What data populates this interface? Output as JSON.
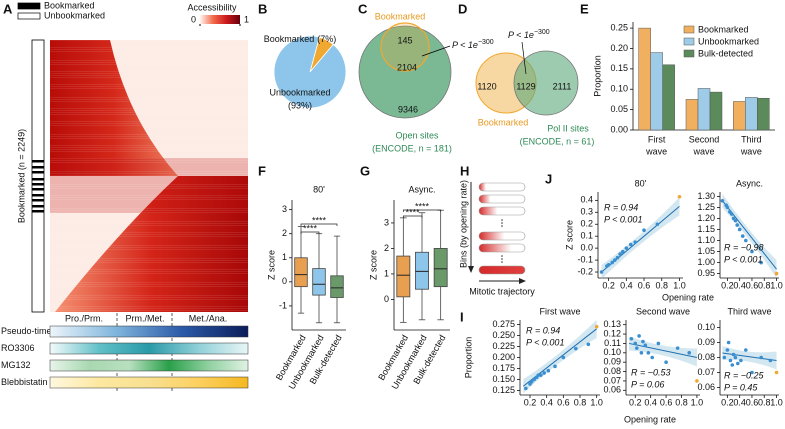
{
  "chart_data": [
    {
      "type": "heatmap",
      "panel": "A",
      "legend": [
        {
          "name": "Bookmarked",
          "color": "#000000"
        },
        {
          "name": "Unbookmarked",
          "color": "#ffffff"
        }
      ],
      "colorbar_title": "Accessibility",
      "colorbar_colors": [
        "#fff5f0",
        "#f26a4a",
        "#cb181d",
        "#67000d"
      ],
      "colorbar_ticks": [
        0,
        1
      ],
      "ylabel": "Bookmarked (n = 2249)",
      "stages": [
        "Pro./Prm.",
        "Prm./Met.",
        "Met./Ana."
      ],
      "tracks": [
        {
          "name": "Pseudo-time",
          "colors": [
            "#eef5fb",
            "#7fb5dc",
            "#2a5aa8",
            "#0b1d5a"
          ]
        },
        {
          "name": "RO3306",
          "colors": [
            "#f4fbfb",
            "#60c0c8",
            "#2a9aa8",
            "#90d0d8",
            "#e8f6f6"
          ]
        },
        {
          "name": "MG132",
          "colors": [
            "#e8f4ea",
            "#a8d8b0",
            "#b8e0c0",
            "#2aa04a",
            "#90d0a0",
            "#e0f2e4"
          ]
        },
        {
          "name": "Blebbistatin",
          "colors": [
            "#fff8e0",
            "#fde8a0",
            "#f8e090",
            "#fcd060",
            "#f5b820"
          ]
        }
      ]
    },
    {
      "type": "pie",
      "panel": "B",
      "categories": [
        "Bookmarked",
        "Unbookmarked"
      ],
      "values": [
        7,
        93
      ],
      "value_labels": [
        "(7%)",
        "(93%)"
      ],
      "colors": [
        "#f0a830",
        "#8ec5ea"
      ]
    },
    {
      "type": "venn",
      "panel": "C",
      "layout": "nested",
      "sets": [
        "Bookmarked",
        "Open sites"
      ],
      "set_note": "(ENCODE, n = 181)",
      "values": [
        145,
        2104,
        9346
      ],
      "annotation": {
        "text": "P < 1e",
        "exponent": "−300"
      },
      "colors": [
        "#f0a830",
        "#5aa87a"
      ]
    },
    {
      "type": "venn",
      "panel": "D",
      "layout": "overlap",
      "sets": [
        "Bookmarked",
        "Pol II sites"
      ],
      "set_note": "(ENCODE, n = 61)",
      "values": [
        1120,
        1129,
        2111
      ],
      "annotation": {
        "text": "P < 1e",
        "exponent": "−300"
      },
      "colors": [
        "#f0a830",
        "#5aa87a"
      ]
    },
    {
      "type": "bar",
      "panel": "E",
      "ylabel": "Proportion",
      "categories": [
        [
          "First",
          "wave"
        ],
        [
          "Second",
          "wave"
        ],
        [
          "Third",
          "wave"
        ]
      ],
      "series": [
        {
          "name": "Bookmarked",
          "color": "#f0b060",
          "values": [
            0.25,
            0.075,
            0.07
          ]
        },
        {
          "name": "Unbookmarked",
          "color": "#9dcbe8",
          "values": [
            0.19,
            0.102,
            0.08
          ]
        },
        {
          "name": "Bulk-detected",
          "color": "#5b8a5b",
          "values": [
            0.16,
            0.093,
            0.078
          ]
        }
      ],
      "ylim": [
        0,
        0.265
      ],
      "yticks": [
        {
          "value": 0,
          "label": "0.00"
        },
        0.05,
        {
          "value": 0.1,
          "label": "0.10"
        },
        0.15,
        {
          "value": 0.2,
          "label": "0.20"
        },
        0.25
      ]
    },
    {
      "type": "box",
      "panel": "F",
      "title": "80'",
      "ylabel": "Z score",
      "categories": [
        "Bookmarked",
        "Unbookmarked",
        "Bulk-detected"
      ],
      "colors": [
        "#e8a050",
        "#8ec5ea",
        "#6a9a6a"
      ],
      "boxes": [
        {
          "low": -1.3,
          "q1": -0.2,
          "median": 0.3,
          "q3": 1.0,
          "high": 2.3
        },
        {
          "low": -1.7,
          "q1": -0.55,
          "median": -0.1,
          "q3": 0.55,
          "high": 2.0
        },
        {
          "low": -1.7,
          "q1": -0.65,
          "median": -0.25,
          "q3": 0.25,
          "high": 1.9
        }
      ],
      "ylim": [
        -2,
        3.4
      ],
      "yticks": [
        -1,
        0,
        1,
        2,
        3
      ],
      "significance": [
        "****",
        "****"
      ]
    },
    {
      "type": "box",
      "panel": "G",
      "title": "Async.",
      "ylabel": "Z score",
      "categories": [
        "Bookmarked",
        "Unbookmarked",
        "Bulk-detected"
      ],
      "colors": [
        "#e8a050",
        "#8ec5ea",
        "#6a9a6a"
      ],
      "boxes": [
        {
          "low": -0.9,
          "q1": 0.1,
          "median": 0.95,
          "q3": 1.7,
          "high": 3.2
        },
        {
          "low": -0.8,
          "q1": 0.4,
          "median": 1.1,
          "q3": 1.85,
          "high": 3.4
        },
        {
          "low": -0.8,
          "q1": 0.5,
          "median": 1.2,
          "q3": 2.0,
          "high": 3.5
        }
      ],
      "ylim": [
        -1.2,
        3.9
      ],
      "yticks": [
        0,
        1,
        2,
        3
      ],
      "significance": [
        "****",
        "****"
      ]
    },
    {
      "type": "schematic",
      "panel": "H",
      "ylabel": "Bins (by opening rate)",
      "xlabel": "Mitotic trajectory"
    },
    {
      "type": "scatter",
      "panel": "J",
      "title": "80'",
      "ylabel": "Z score",
      "color": "#3a8fd0",
      "highlight_color": "#f0a830",
      "x": [
        0.12,
        0.18,
        0.2,
        0.24,
        0.27,
        0.3,
        0.33,
        0.36,
        0.4,
        0.45,
        0.5,
        0.6,
        0.75,
        1.0
      ],
      "y": [
        -0.2,
        -0.15,
        -0.14,
        -0.12,
        -0.1,
        -0.08,
        -0.05,
        -0.03,
        0,
        0.03,
        0.05,
        0.15,
        0.2,
        0.43
      ],
      "fit_x": [
        0.12,
        1.0
      ],
      "fit_y": [
        -0.2,
        0.35
      ],
      "xlim": [
        0.08,
        1.04
      ],
      "ylim": [
        -0.25,
        0.47
      ],
      "xticks": [
        0.2,
        0.4,
        0.6,
        0.8,
        {
          "value": 1,
          "label": "1.0"
        }
      ],
      "yticks": [
        -0.2,
        -0.1,
        {
          "value": 0,
          "label": "0.0"
        },
        0.1,
        0.2,
        0.3,
        0.4
      ],
      "stats": [
        "R = 0.94",
        "P < 0.001"
      ]
    },
    {
      "type": "scatter",
      "title": "Async.",
      "xlabel": "Opening rate",
      "color": "#3a8fd0",
      "highlight_color": "#f0a830",
      "x": [
        0.12,
        0.18,
        0.2,
        0.24,
        0.27,
        0.3,
        0.33,
        0.36,
        0.4,
        0.45,
        0.5,
        0.6,
        0.75,
        1.0
      ],
      "y": [
        1.28,
        1.26,
        1.25,
        1.23,
        1.22,
        1.2,
        1.19,
        1.17,
        1.15,
        1.12,
        1.1,
        1.05,
        1.0,
        0.95
      ],
      "fit_x": [
        0.12,
        1.0
      ],
      "fit_y": [
        1.28,
        0.97
      ],
      "xlim": [
        0.08,
        1.04
      ],
      "ylim": [
        0.93,
        1.32
      ],
      "xticks": [
        0.2,
        0.4,
        0.6,
        0.8,
        {
          "value": 1,
          "label": "1.0"
        }
      ],
      "yticks": [
        0.95,
        {
          "value": 1,
          "label": "1.00"
        },
        1.05,
        {
          "value": 1.1,
          "label": "1.10"
        },
        1.15,
        {
          "value": 1.2,
          "label": "1.20"
        },
        1.25,
        {
          "value": 1.3,
          "label": "1.30"
        }
      ],
      "stats": [
        "R = −0.98",
        "P < 0.001"
      ]
    },
    {
      "type": "scatter",
      "panel": "I",
      "title": "First wave",
      "ylabel": "Proportion",
      "color": "#3a8fd0",
      "highlight_color": "#f0a830",
      "x": [
        0.15,
        0.2,
        0.22,
        0.25,
        0.28,
        0.3,
        0.33,
        0.37,
        0.42,
        0.5,
        0.6,
        0.75,
        0.9,
        1.0
      ],
      "y": [
        0.13,
        0.14,
        0.145,
        0.15,
        0.155,
        0.16,
        0.16,
        0.165,
        0.17,
        0.18,
        0.2,
        0.22,
        0.23,
        0.27
      ],
      "fit_x": [
        0.12,
        1.0
      ],
      "fit_y": [
        0.135,
        0.265
      ],
      "xlim": [
        0.08,
        1.04
      ],
      "ylim": [
        0.115,
        0.285
      ],
      "xticks": [
        0.2,
        0.4,
        0.6,
        0.8,
        {
          "value": 1,
          "label": "1.0"
        }
      ],
      "yticks": [
        0.125,
        {
          "value": 0.15,
          "label": "0.150"
        },
        0.175,
        {
          "value": 0.2,
          "label": "0.200"
        },
        0.225,
        {
          "value": 0.25,
          "label": "0.250"
        },
        0.275
      ],
      "stats": [
        "R = 0.94",
        "P < 0.001"
      ]
    },
    {
      "type": "scatter",
      "title": "Second wave",
      "xlabel": "Opening rate",
      "color": "#3a8fd0",
      "highlight_color": "#f0a830",
      "x": [
        0.15,
        0.2,
        0.22,
        0.25,
        0.28,
        0.3,
        0.33,
        0.37,
        0.42,
        0.5,
        0.6,
        0.75,
        0.9,
        1.0
      ],
      "y": [
        0.115,
        0.11,
        0.105,
        0.118,
        0.1,
        0.112,
        0.108,
        0.1,
        0.095,
        0.11,
        0.09,
        0.105,
        0.1,
        0.07
      ],
      "fit_x": [
        0.12,
        1.0
      ],
      "fit_y": [
        0.11,
        0.095
      ],
      "xlim": [
        0.08,
        1.04
      ],
      "ylim": [
        0.055,
        0.135
      ],
      "xticks": [
        0.2,
        0.4,
        0.6,
        0.8,
        {
          "value": 1,
          "label": "1.0"
        }
      ],
      "yticks": [
        0.06,
        0.07,
        0.08,
        0.09,
        {
          "value": 0.1,
          "label": "0.10"
        },
        0.11,
        0.12,
        0.13
      ],
      "stats": [
        "R = −0.53",
        "P = 0.06"
      ]
    },
    {
      "type": "scatter",
      "title": "Third wave",
      "color": "#3a8fd0",
      "highlight_color": "#f0a830",
      "x": [
        0.15,
        0.2,
        0.22,
        0.25,
        0.28,
        0.3,
        0.33,
        0.37,
        0.42,
        0.5,
        0.6,
        0.75,
        0.9,
        1.0
      ],
      "y": [
        0.08,
        0.085,
        0.09,
        0.078,
        0.075,
        0.082,
        0.08,
        0.076,
        0.078,
        0.085,
        0.07,
        0.08,
        0.078,
        0.07
      ],
      "fit_x": [
        0.12,
        1.0
      ],
      "fit_y": [
        0.083,
        0.078
      ],
      "xlim": [
        0.08,
        1.04
      ],
      "ylim": [
        0.055,
        0.105
      ],
      "xticks": [
        0.2,
        0.4,
        0.6,
        0.8,
        {
          "value": 1,
          "label": "1.0"
        }
      ],
      "yticks": [
        0.06,
        0.07,
        0.08,
        0.09,
        {
          "value": 0.1,
          "label": "0.10"
        }
      ],
      "stats": [
        "R = −0.25",
        "P = 0.45"
      ]
    }
  ]
}
